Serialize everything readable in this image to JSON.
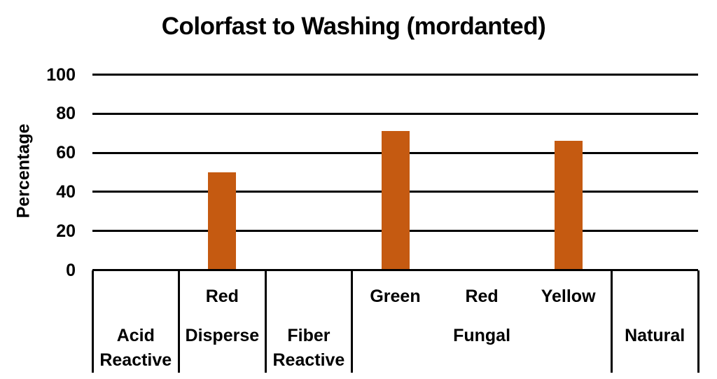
{
  "chart_data": {
    "type": "bar",
    "title": "Colorfast to Washing (mordanted)",
    "ylabel": "Percentage",
    "ylim": [
      0,
      100
    ],
    "yticks": [
      0,
      20,
      40,
      60,
      80,
      100
    ],
    "grid": "horizontal",
    "legend": "none",
    "bar_color": "#C55A11",
    "categories": [
      {
        "group": "Acid Reactive",
        "sub": "",
        "value": null
      },
      {
        "group": "Disperse",
        "sub": "Red",
        "value": 50
      },
      {
        "group": "Fiber Reactive",
        "sub": "",
        "value": null
      },
      {
        "group": "Fungal",
        "sub": "Green",
        "value": 71
      },
      {
        "group": "Fungal",
        "sub": "Red",
        "value": 0
      },
      {
        "group": "Fungal",
        "sub": "Yellow",
        "value": 66
      },
      {
        "group": "Natural",
        "sub": "",
        "value": null
      }
    ]
  }
}
